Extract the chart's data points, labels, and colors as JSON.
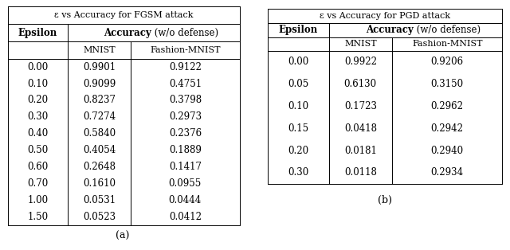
{
  "table_a": {
    "title": "ε vs Accuracy for FGSM attack",
    "rows": [
      [
        "0.00",
        "0.9901",
        "0.9122"
      ],
      [
        "0.10",
        "0.9099",
        "0.4751"
      ],
      [
        "0.20",
        "0.8237",
        "0.3798"
      ],
      [
        "0.30",
        "0.7274",
        "0.2973"
      ],
      [
        "0.40",
        "0.5840",
        "0.2376"
      ],
      [
        "0.50",
        "0.4054",
        "0.1889"
      ],
      [
        "0.60",
        "0.2648",
        "0.1417"
      ],
      [
        "0.70",
        "0.1610",
        "0.0955"
      ],
      [
        "1.00",
        "0.0531",
        "0.0444"
      ],
      [
        "1.50",
        "0.0523",
        "0.0412"
      ]
    ],
    "caption": "(a)"
  },
  "table_b": {
    "title": "ε vs Accuracy for PGD attack",
    "rows": [
      [
        "0.00",
        "0.9922",
        "0.9206"
      ],
      [
        "0.05",
        "0.6130",
        "0.3150"
      ],
      [
        "0.10",
        "0.1723",
        "0.2962"
      ],
      [
        "0.15",
        "0.0418",
        "0.2942"
      ],
      [
        "0.20",
        "0.0181",
        "0.2940"
      ],
      [
        "0.30",
        "0.0118",
        "0.2934"
      ]
    ],
    "caption": "(b)"
  },
  "col0_label": "Epsilon",
  "col1_label": "MNIST",
  "col2_label": "Fashion-MNIST",
  "acc_bold": "Accuracy",
  "acc_normal": " (w/o defense)",
  "bg_color": "white",
  "line_color": "black",
  "fs_title": 8.0,
  "fs_header": 8.5,
  "fs_sub": 8.0,
  "fs_data": 8.5,
  "fs_caption": 9.0
}
